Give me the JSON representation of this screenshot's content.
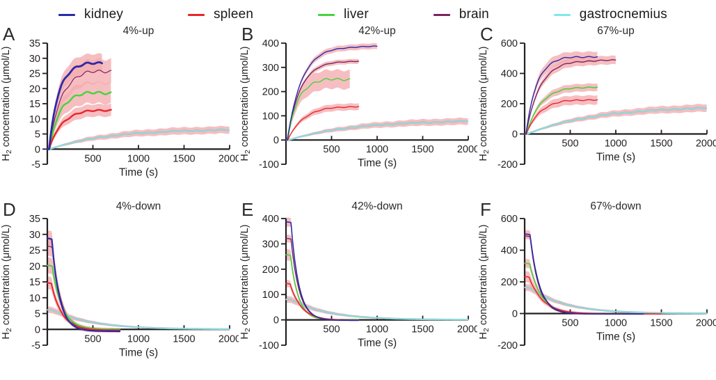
{
  "legend": {
    "items": [
      {
        "label": "kidney",
        "color": "#2b2aa8"
      },
      {
        "label": "spleen",
        "color": "#e8262b"
      },
      {
        "label": "liver",
        "color": "#46d33c"
      },
      {
        "label": "brain",
        "color": "#7a2462"
      },
      {
        "label": "gastrocnemius",
        "color": "#7fe8ec"
      }
    ]
  },
  "chart_data": {
    "type": "line",
    "x_unit": "s",
    "y_unit": "umol/L",
    "band_color": "#f4acb0",
    "band_opacity": 0.78,
    "axis_color": "#231f20",
    "panels": [
      {
        "letter": "A",
        "title": "4%-up",
        "xlabel": "Time (s)",
        "ylabel": "H2 concentration (μmol/L)",
        "xlim": [
          0,
          2000
        ],
        "ylim": [
          -5,
          35
        ],
        "xticks": [
          500,
          1000,
          1500,
          2000
        ],
        "yticks": [
          -5,
          0,
          5,
          10,
          15,
          20,
          25,
          30,
          35
        ],
        "series": [
          {
            "name": "kidney",
            "model": "rise",
            "plateau": 28.5,
            "tau": 100,
            "t_start": 20,
            "t_end": 600,
            "band": 3,
            "lw": 2.8
          },
          {
            "name": "spleen",
            "model": "rise",
            "plateau": 13,
            "tau": 135,
            "t_start": 20,
            "t_end": 700,
            "band": 2,
            "lw": 2.4
          },
          {
            "name": "liver",
            "model": "rise",
            "plateau": 18.7,
            "tau": 105,
            "t_start": 25,
            "t_end": 700,
            "band": 3.5,
            "lw": 2.4
          },
          {
            "name": "brain",
            "model": "rise",
            "plateau": 26,
            "tau": 125,
            "t_start": 20,
            "t_end": 700,
            "band": 4,
            "lw": 1.2
          },
          {
            "name": "gastrocnemius",
            "model": "rise",
            "plateau": 6.6,
            "tau": 620,
            "t_start": 30,
            "t_end": 2000,
            "band": 1.2,
            "lw": 1.5,
            "under_color": "#a9abab"
          }
        ]
      },
      {
        "letter": "B",
        "title": "42%-up",
        "xlabel": "Time (s)",
        "ylabel": "H2 concentration (μmol/L)",
        "xlim": [
          0,
          2000
        ],
        "ylim": [
          -100,
          400
        ],
        "xticks": [
          500,
          1000,
          1500,
          2000
        ],
        "yticks": [
          -100,
          0,
          100,
          200,
          300,
          400
        ],
        "series": [
          {
            "name": "kidney",
            "model": "rise",
            "plateau": 387,
            "tau": 155,
            "t_start": 15,
            "t_end": 1000,
            "band": 12,
            "lw": 1.4
          },
          {
            "name": "spleen",
            "model": "rise",
            "plateau": 140,
            "tau": 170,
            "t_start": 20,
            "t_end": 800,
            "band": 14,
            "lw": 1.4
          },
          {
            "name": "liver",
            "model": "rise",
            "plateau": 252,
            "tau": 105,
            "t_start": 20,
            "t_end": 700,
            "band": 38,
            "lw": 1.4
          },
          {
            "name": "brain",
            "model": "rise",
            "plateau": 327,
            "tau": 140,
            "t_start": 15,
            "t_end": 800,
            "band": 10,
            "lw": 1.4
          },
          {
            "name": "gastrocnemius",
            "model": "rise",
            "plateau": 82,
            "tau": 700,
            "t_start": 30,
            "t_end": 2000,
            "band": 14,
            "lw": 1.5,
            "under_color": "#a9abab"
          }
        ]
      },
      {
        "letter": "C",
        "title": "67%-up",
        "xlabel": "Time (s)",
        "ylabel": "H2 concentration (μmol/L)",
        "xlim": [
          0,
          2000
        ],
        "ylim": [
          -200,
          600
        ],
        "xticks": [
          500,
          1000,
          1500,
          2000
        ],
        "yticks": [
          -200,
          0,
          200,
          400,
          600
        ],
        "series": [
          {
            "name": "kidney",
            "model": "rise",
            "plateau": 512,
            "tau": 115,
            "t_start": 15,
            "t_end": 800,
            "band": 35,
            "lw": 1.4
          },
          {
            "name": "spleen",
            "model": "rise",
            "plateau": 228,
            "tau": 145,
            "t_start": 20,
            "t_end": 800,
            "band": 30,
            "lw": 1.4
          },
          {
            "name": "liver",
            "model": "rise",
            "plateau": 312,
            "tau": 150,
            "t_start": 20,
            "t_end": 800,
            "band": 25,
            "lw": 1.6
          },
          {
            "name": "brain",
            "model": "rise",
            "plateau": 487,
            "tau": 150,
            "t_start": 15,
            "t_end": 1000,
            "band": 28,
            "lw": 1.4
          },
          {
            "name": "gastrocnemius",
            "model": "rise",
            "plateau": 185,
            "tau": 750,
            "t_start": 30,
            "t_end": 2000,
            "band": 25,
            "lw": 1.6,
            "under_color": "#a9abab"
          }
        ]
      },
      {
        "letter": "D",
        "title": "4%-down",
        "xlabel": "Time (s)",
        "ylabel": "H2 concentration (μmol/L)",
        "xlim": [
          0,
          2000
        ],
        "ylim": [
          -5,
          35
        ],
        "xticks": [
          500,
          1000,
          1500,
          2000
        ],
        "yticks": [
          -5,
          0,
          5,
          10,
          15,
          20,
          25,
          30,
          35
        ],
        "series": [
          {
            "name": "kidney",
            "model": "decay",
            "y0": 28.5,
            "tau": 85,
            "t_start": 50,
            "t_end": 800,
            "band": 2.5,
            "lw": 2.2,
            "floor": -0.6
          },
          {
            "name": "spleen",
            "model": "decay",
            "y0": 14.5,
            "tau": 115,
            "t_start": 45,
            "t_end": 800,
            "band": 2,
            "lw": 2,
            "floor": -0.3
          },
          {
            "name": "liver",
            "model": "decay",
            "y0": 20,
            "tau": 105,
            "t_start": 55,
            "t_end": 800,
            "band": 2.5,
            "lw": 2,
            "floor": 0
          },
          {
            "name": "brain",
            "model": "decay",
            "y0": 26,
            "tau": 95,
            "t_start": 55,
            "t_end": 800,
            "band": 3,
            "lw": 1.2,
            "floor": -0.4
          },
          {
            "name": "gastrocnemius",
            "model": "decay",
            "y0": 6.1,
            "tau": 430,
            "t_start": 60,
            "t_end": 2000,
            "band": 1,
            "lw": 1.5,
            "floor": 0,
            "under_color": "#a9abab"
          }
        ]
      },
      {
        "letter": "E",
        "title": "42%-down",
        "xlabel": "Time (s)",
        "ylabel": "H2 concentration (μmol/L)",
        "xlim": [
          0,
          2000
        ],
        "ylim": [
          -100,
          400
        ],
        "xticks": [
          500,
          1000,
          1500,
          2000
        ],
        "yticks": [
          -100,
          0,
          100,
          200,
          300,
          400
        ],
        "series": [
          {
            "name": "kidney",
            "model": "decay",
            "y0": 385,
            "tau": 85,
            "t_start": 55,
            "t_end": 800,
            "band": 18,
            "lw": 1.6,
            "floor": -2
          },
          {
            "name": "spleen",
            "model": "decay",
            "y0": 142,
            "tau": 125,
            "t_start": 45,
            "t_end": 800,
            "band": 14,
            "lw": 1.6,
            "floor": -2
          },
          {
            "name": "liver",
            "model": "decay",
            "y0": 255,
            "tau": 85,
            "t_start": 50,
            "t_end": 800,
            "band": 22,
            "lw": 1.6,
            "floor": 0
          },
          {
            "name": "brain",
            "model": "decay",
            "y0": 320,
            "tau": 90,
            "t_start": 55,
            "t_end": 800,
            "band": 15,
            "lw": 1.4,
            "floor": -2
          },
          {
            "name": "gastrocnemius",
            "model": "decay",
            "y0": 80,
            "tau": 400,
            "t_start": 60,
            "t_end": 2000,
            "band": 13,
            "lw": 1.5,
            "floor": 0,
            "under_color": "#a9abab"
          }
        ]
      },
      {
        "letter": "F",
        "title": "67%-down",
        "xlabel": "Time (s)",
        "ylabel": "H2 concentration (μmol/L)",
        "xlim": [
          0,
          2000
        ],
        "ylim": [
          -200,
          600
        ],
        "xticks": [
          500,
          1000,
          1500,
          2000
        ],
        "yticks": [
          -200,
          0,
          200,
          400,
          600
        ],
        "series": [
          {
            "name": "kidney",
            "model": "decay",
            "y0": 500,
            "tau": 100,
            "t_start": 60,
            "t_end": 1300,
            "band": 25,
            "lw": 1.6,
            "floor": -3
          },
          {
            "name": "spleen",
            "model": "decay",
            "y0": 230,
            "tau": 150,
            "t_start": 50,
            "t_end": 1500,
            "band": 35,
            "lw": 1.6,
            "floor": -2
          },
          {
            "name": "liver",
            "model": "decay",
            "y0": 315,
            "tau": 125,
            "t_start": 55,
            "t_end": 1200,
            "band": 28,
            "lw": 1.6,
            "floor": 0
          },
          {
            "name": "brain",
            "model": "decay",
            "y0": 488,
            "tau": 95,
            "t_start": 60,
            "t_end": 800,
            "band": 20,
            "lw": 1.4,
            "floor": -3
          },
          {
            "name": "gastrocnemius",
            "model": "decay",
            "y0": 163,
            "tau": 380,
            "t_start": 60,
            "t_end": 2000,
            "band": 22,
            "lw": 1.5,
            "floor": 0,
            "under_color": "#a9abab"
          }
        ]
      }
    ]
  }
}
